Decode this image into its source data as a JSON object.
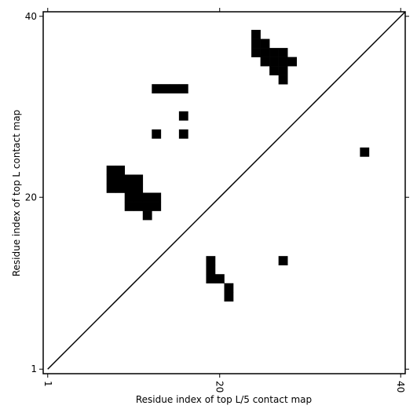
{
  "chart_data": {
    "type": "contact_map",
    "xlabel": "Residue index of top L/5 contact map",
    "ylabel": "Residue index of top L contact map",
    "x": [
      24,
      24,
      25,
      24,
      25,
      26,
      27,
      25,
      26,
      27,
      28,
      26,
      27,
      27,
      13,
      14,
      15,
      16,
      16,
      13,
      16,
      36,
      8,
      9,
      8,
      9,
      10,
      11,
      8,
      9,
      10,
      11,
      10,
      11,
      12,
      13,
      10,
      11,
      12,
      13,
      12,
      19,
      19,
      19,
      20,
      21,
      21,
      27
    ],
    "y": [
      38,
      37,
      37,
      36,
      36,
      36,
      36,
      35,
      35,
      35,
      35,
      34,
      34,
      33,
      32,
      32,
      32,
      32,
      29,
      27,
      27,
      25,
      23,
      23,
      22,
      22,
      22,
      22,
      21,
      21,
      21,
      21,
      20,
      20,
      20,
      20,
      19,
      19,
      19,
      19,
      18,
      13,
      12,
      11,
      11,
      10,
      9,
      13
    ],
    "color": "#000000",
    "xlim": [
      0.5,
      40.5
    ],
    "ylim": [
      0.5,
      40.5
    ],
    "xticks": [
      1,
      20,
      40
    ],
    "yticks": [
      1,
      20,
      40
    ]
  }
}
